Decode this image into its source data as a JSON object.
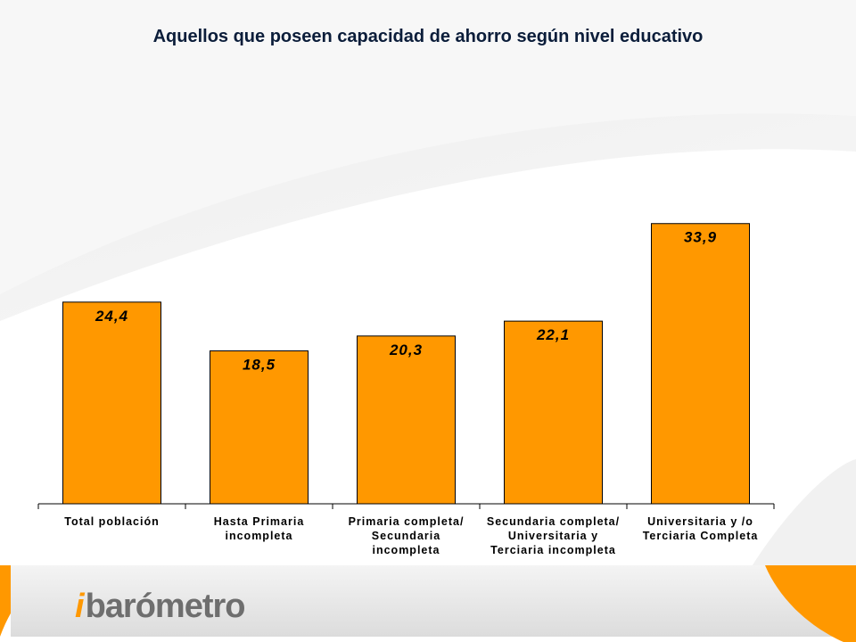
{
  "chart_data": {
    "type": "bar",
    "title": "Aquellos que poseen capacidad de ahorro según nivel educativo",
    "xlabel": "",
    "ylabel": "",
    "ylim": [
      0,
      40
    ],
    "grid": false,
    "legend": "none",
    "bar_color": "#ff9800",
    "categories": [
      [
        "Total población"
      ],
      [
        "Hasta Primaria",
        "incompleta"
      ],
      [
        "Primaria completa/",
        "Secundaria",
        "incompleta"
      ],
      [
        "Secundaria completa/",
        "Universitaria y",
        "Terciaria incompleta"
      ],
      [
        "Universitaria y /o",
        "Terciaria Completa"
      ]
    ],
    "values": [
      24.4,
      18.5,
      20.3,
      22.1,
      33.9
    ],
    "value_labels": [
      "24,4",
      "18,5",
      "20,3",
      "22,1",
      "33,9"
    ]
  },
  "footer": {
    "logo_text": "barómetro",
    "logo_mark": "i"
  }
}
